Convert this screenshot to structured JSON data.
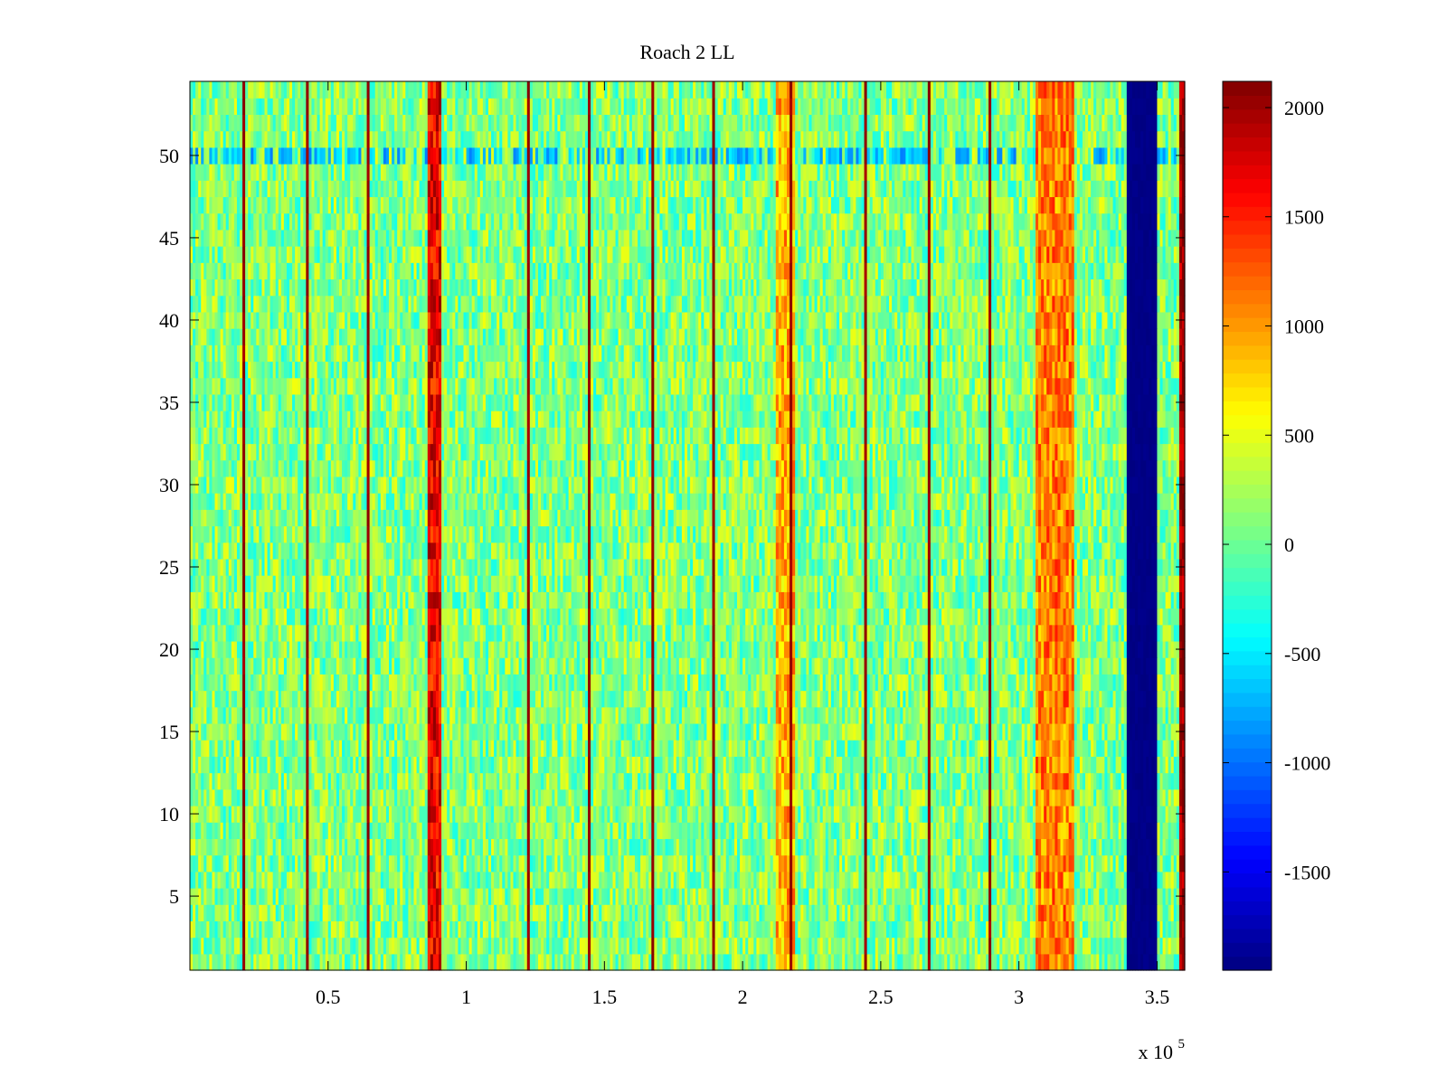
{
  "chart_data": {
    "type": "heatmap",
    "title": "Roach 2 LL",
    "xlabel": "",
    "ylabel": "",
    "xlim": [
      0,
      360000
    ],
    "ylim": [
      0.5,
      54.5
    ],
    "x_ticks": [
      50000,
      100000,
      150000,
      200000,
      250000,
      300000,
      350000
    ],
    "x_tick_labels": [
      "0.5",
      "1",
      "1.5",
      "2",
      "2.5",
      "3",
      "3.5"
    ],
    "x_multiplier": {
      "base": "x 10",
      "exponent": "5"
    },
    "y_ticks": [
      5,
      10,
      15,
      20,
      25,
      30,
      35,
      40,
      45,
      50
    ],
    "y_tick_labels": [
      "5",
      "10",
      "15",
      "20",
      "25",
      "30",
      "35",
      "40",
      "45",
      "50"
    ],
    "rows": 54,
    "colormap": "jet",
    "colorbar": {
      "range": [
        -1950,
        2120
      ],
      "ticks": [
        2000,
        1500,
        1000,
        500,
        0,
        -500,
        -1000,
        -1500
      ],
      "tick_labels": [
        "2000",
        "1500",
        "1000",
        "500",
        "0",
        "-500",
        "-1000",
        "-1500"
      ]
    },
    "background_level": 100,
    "background_noise": 450,
    "features": [
      {
        "name": "thin spike",
        "x": [
          19500,
          20000
        ],
        "value": 2100
      },
      {
        "name": "thin spike",
        "x": [
          42000,
          42500
        ],
        "value": 2100
      },
      {
        "name": "thin spike",
        "x": [
          64500,
          65000
        ],
        "value": 2100
      },
      {
        "name": "broad band",
        "x": [
          86000,
          91000
        ],
        "value": 1650
      },
      {
        "name": "thin spike",
        "x": [
          122000,
          122500
        ],
        "value": 2100
      },
      {
        "name": "thin spike",
        "x": [
          144500,
          145000
        ],
        "value": 2100
      },
      {
        "name": "thin spike",
        "x": [
          167000,
          167500
        ],
        "value": 2100
      },
      {
        "name": "thin spike",
        "x": [
          189500,
          190000
        ],
        "value": 2100
      },
      {
        "name": "band",
        "x": [
          212000,
          219000
        ],
        "value": 900
      },
      {
        "name": "thin spike",
        "x": [
          217000,
          217500
        ],
        "value": 2100
      },
      {
        "name": "thin spike",
        "x": [
          244500,
          245000
        ],
        "value": 2100
      },
      {
        "name": "thin spike",
        "x": [
          267000,
          267500
        ],
        "value": 2100
      },
      {
        "name": "thin spike",
        "x": [
          289500,
          290000
        ],
        "value": 2100
      },
      {
        "name": "warm band",
        "x": [
          306000,
          320000
        ],
        "value": 1100
      },
      {
        "name": "low band",
        "x": [
          339000,
          350000
        ],
        "value": -1950
      },
      {
        "name": "edge spike",
        "x": [
          358000,
          360000
        ],
        "value": 2100
      }
    ],
    "row_features": [
      {
        "name": "cool row",
        "y": 50,
        "value": -700
      }
    ]
  }
}
